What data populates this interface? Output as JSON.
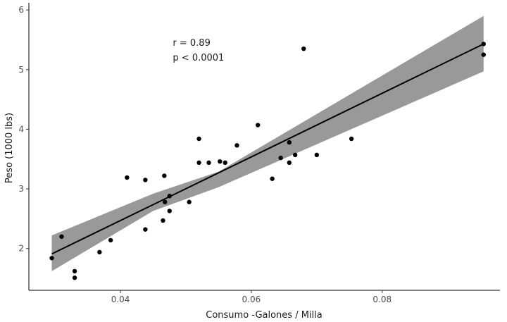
{
  "chart_data": {
    "type": "scatter",
    "xlabel": "Consumo  -Galones / Milla",
    "ylabel": "Peso  (1000 lbs)",
    "xlim": [
      0.026,
      0.098
    ],
    "ylim": [
      1.3,
      6.12
    ],
    "x_ticks": [
      0.04,
      0.06,
      0.08
    ],
    "x_tick_labels": [
      "0.04",
      "0.06",
      "0.08"
    ],
    "y_ticks": [
      2,
      3,
      4,
      5,
      6
    ],
    "y_tick_labels": [
      "2",
      "3",
      "4",
      "5",
      "6"
    ],
    "grid": false,
    "annotations": [
      "r = 0.89",
      "p < 0.0001"
    ],
    "annotation_anchor": [
      0.048,
      5.2
    ],
    "colors": {
      "points": "#000000",
      "line": "#000000",
      "ribbon": "#999999",
      "axis": "#000000"
    },
    "regression": {
      "x_start": 0.0295,
      "x_end": 0.0955,
      "y_start": 1.91,
      "y_end": 5.43,
      "band_lower": [
        [
          0.0295,
          1.62
        ],
        [
          0.045,
          2.63
        ],
        [
          0.055,
          3.03
        ],
        [
          0.0955,
          4.97
        ]
      ],
      "band_upper": [
        [
          0.0295,
          2.22
        ],
        [
          0.045,
          2.92
        ],
        [
          0.055,
          3.29
        ],
        [
          0.0955,
          5.9
        ]
      ]
    },
    "points": [
      [
        0.0295,
        1.84
      ],
      [
        0.031,
        2.2
      ],
      [
        0.033,
        1.62
      ],
      [
        0.033,
        1.51
      ],
      [
        0.0368,
        1.94
      ],
      [
        0.0385,
        2.14
      ],
      [
        0.041,
        3.19
      ],
      [
        0.0438,
        3.15
      ],
      [
        0.0438,
        2.32
      ],
      [
        0.0465,
        2.47
      ],
      [
        0.0467,
        3.22
      ],
      [
        0.0468,
        2.78
      ],
      [
        0.0475,
        2.63
      ],
      [
        0.0475,
        2.88
      ],
      [
        0.0505,
        2.78
      ],
      [
        0.052,
        3.84
      ],
      [
        0.052,
        3.44
      ],
      [
        0.0535,
        3.44
      ],
      [
        0.0552,
        3.46
      ],
      [
        0.056,
        3.44
      ],
      [
        0.0578,
        3.73
      ],
      [
        0.061,
        4.07
      ],
      [
        0.0632,
        3.17
      ],
      [
        0.0645,
        3.52
      ],
      [
        0.0658,
        3.78
      ],
      [
        0.0658,
        3.44
      ],
      [
        0.0667,
        3.57
      ],
      [
        0.068,
        5.35
      ],
      [
        0.07,
        3.57
      ],
      [
        0.0753,
        3.84
      ],
      [
        0.0955,
        5.43
      ],
      [
        0.0955,
        5.25
      ]
    ]
  }
}
